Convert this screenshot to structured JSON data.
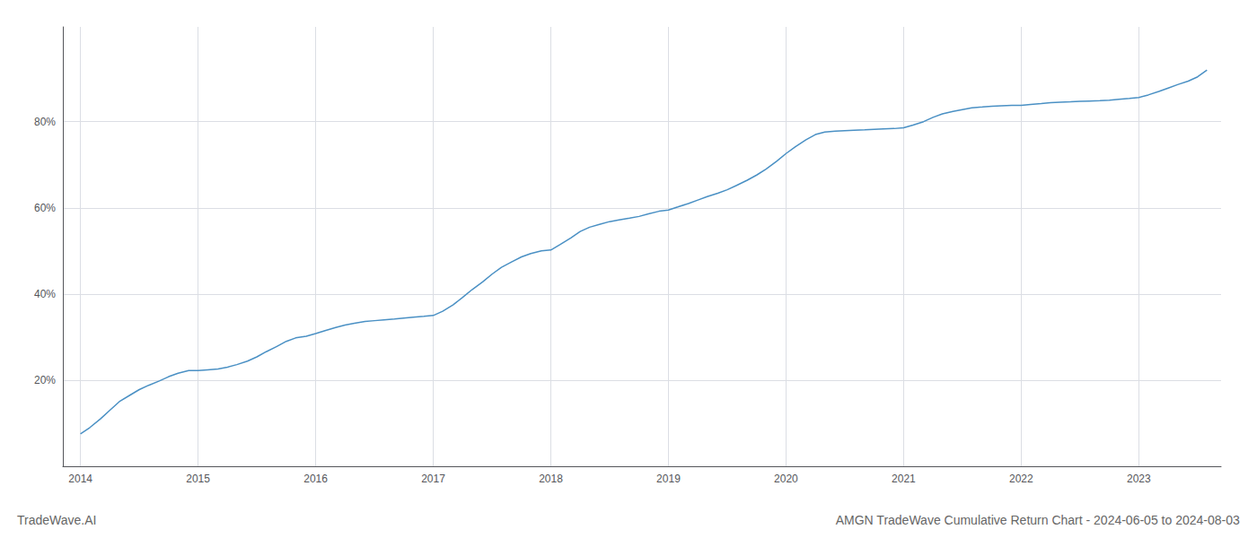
{
  "chart_data": {
    "type": "line",
    "title": "AMGN TradeWave Cumulative Return Chart - 2024-06-05 to 2024-08-03",
    "annotations": [
      "TradeWave.AI"
    ],
    "color": "#4a90c4",
    "grid": true,
    "xlim": [
      2013.85,
      2023.7
    ],
    "xticks": [
      2014,
      2015,
      2016,
      2017,
      2018,
      2019,
      2020,
      2021,
      2022,
      2023
    ],
    "ylim": [
      0.0,
      1.02
    ],
    "yticks": [
      {
        "value": 0.2,
        "label": "20%"
      },
      {
        "value": 0.4,
        "label": "40%"
      },
      {
        "value": 0.6,
        "label": "60%"
      },
      {
        "value": 0.8,
        "label": "80%"
      }
    ],
    "x": [
      2014.0,
      2014.08,
      2014.17,
      2014.25,
      2014.33,
      2014.42,
      2014.5,
      2014.58,
      2014.67,
      2014.75,
      2014.83,
      2014.92,
      2015.0,
      2015.08,
      2015.17,
      2015.25,
      2015.33,
      2015.42,
      2015.5,
      2015.58,
      2015.67,
      2015.75,
      2015.83,
      2015.92,
      2016.0,
      2016.08,
      2016.17,
      2016.25,
      2016.33,
      2016.42,
      2016.5,
      2016.58,
      2016.67,
      2016.75,
      2016.83,
      2016.92,
      2017.0,
      2017.08,
      2017.17,
      2017.25,
      2017.33,
      2017.42,
      2017.5,
      2017.58,
      2017.67,
      2017.75,
      2017.83,
      2017.92,
      2018.0,
      2018.08,
      2018.17,
      2018.25,
      2018.33,
      2018.42,
      2018.5,
      2018.58,
      2018.67,
      2018.75,
      2018.83,
      2018.92,
      2019.0,
      2019.08,
      2019.17,
      2019.25,
      2019.33,
      2019.42,
      2019.5,
      2019.58,
      2019.67,
      2019.75,
      2019.83,
      2019.92,
      2020.0,
      2020.08,
      2020.17,
      2020.25,
      2020.33,
      2020.42,
      2020.5,
      2020.58,
      2020.67,
      2020.75,
      2020.83,
      2020.92,
      2021.0,
      2021.08,
      2021.17,
      2021.25,
      2021.33,
      2021.42,
      2021.5,
      2021.58,
      2021.67,
      2021.75,
      2021.83,
      2021.92,
      2022.0,
      2022.08,
      2022.17,
      2022.25,
      2022.33,
      2022.42,
      2022.5,
      2022.58,
      2022.67,
      2022.75,
      2022.83,
      2022.92,
      2023.0,
      2023.08,
      2023.17,
      2023.25,
      2023.33,
      2023.42,
      2023.5,
      2023.58
    ],
    "values": [
      0.075,
      0.09,
      0.11,
      0.13,
      0.15,
      0.165,
      0.178,
      0.188,
      0.198,
      0.208,
      0.216,
      0.222,
      0.222,
      0.224,
      0.226,
      0.23,
      0.236,
      0.244,
      0.254,
      0.266,
      0.278,
      0.29,
      0.298,
      0.302,
      0.308,
      0.315,
      0.322,
      0.328,
      0.332,
      0.336,
      0.338,
      0.34,
      0.342,
      0.344,
      0.346,
      0.348,
      0.35,
      0.36,
      0.375,
      0.392,
      0.41,
      0.428,
      0.446,
      0.462,
      0.475,
      0.486,
      0.494,
      0.5,
      0.502,
      0.515,
      0.53,
      0.545,
      0.555,
      0.562,
      0.568,
      0.572,
      0.576,
      0.58,
      0.586,
      0.592,
      0.595,
      0.602,
      0.61,
      0.618,
      0.626,
      0.634,
      0.642,
      0.652,
      0.664,
      0.676,
      0.69,
      0.708,
      0.726,
      0.742,
      0.758,
      0.77,
      0.776,
      0.778,
      0.779,
      0.78,
      0.781,
      0.782,
      0.783,
      0.784,
      0.786,
      0.792,
      0.8,
      0.81,
      0.818,
      0.824,
      0.828,
      0.832,
      0.834,
      0.836,
      0.837,
      0.838,
      0.838,
      0.84,
      0.842,
      0.844,
      0.845,
      0.846,
      0.847,
      0.848,
      0.849,
      0.85,
      0.852,
      0.854,
      0.856,
      0.862,
      0.87,
      0.878,
      0.886,
      0.894,
      0.904,
      0.92
    ]
  }
}
